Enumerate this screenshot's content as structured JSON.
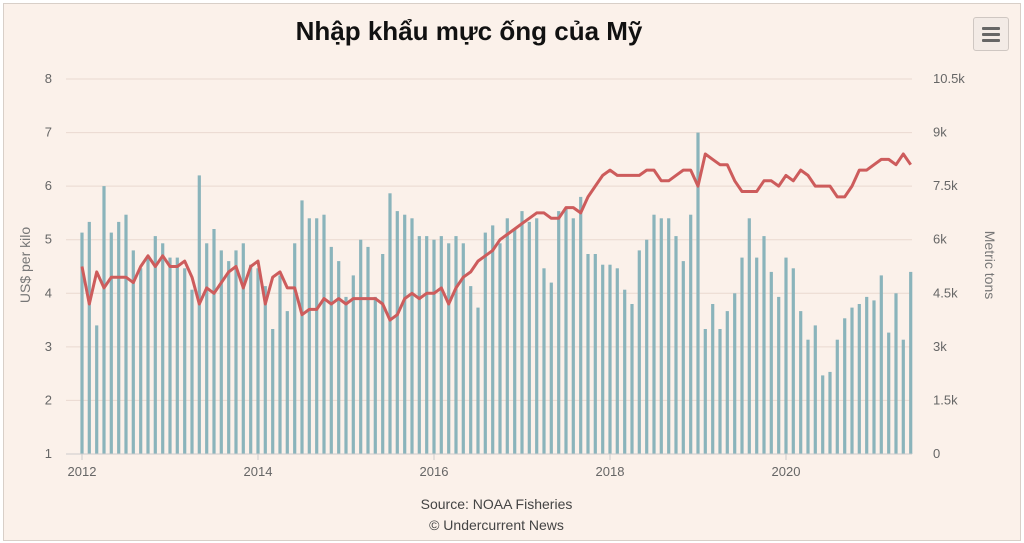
{
  "title": "Nhập khẩu mực ống của Mỹ",
  "menu_icon": "hamburger-menu-icon",
  "source_line": "Source: NOAA Fisheries",
  "credit_line": "© Undercurrent News",
  "chart_data": {
    "type": "bar+line",
    "title": "Nhập khẩu mực ống của Mỹ",
    "xlabel": "",
    "x_ticks": [
      "2012",
      "2014",
      "2016",
      "2018",
      "2020"
    ],
    "left_axis": {
      "label": "US$ per kilo",
      "ticks": [
        "1",
        "2",
        "3",
        "4",
        "5",
        "6",
        "7",
        "8"
      ],
      "range": [
        1,
        8
      ]
    },
    "right_axis": {
      "label": "Metric tons",
      "ticks": [
        "0",
        "1.5k",
        "3k",
        "4.5k",
        "6k",
        "7.5k",
        "9k",
        "10.5k"
      ],
      "range": [
        0,
        10500
      ]
    },
    "grid": true,
    "bar_color": "#8ab4bb",
    "line_color": "#cd5c5c",
    "start_year": 2012,
    "series": [
      {
        "axis": "right",
        "kind": "bar",
        "values": [
          6200,
          6500,
          3600,
          7500,
          6200,
          6500,
          6700,
          5700,
          5200,
          5500,
          6100,
          5900,
          5500,
          5500,
          5200,
          4600,
          7800,
          5900,
          6300,
          5700,
          5400,
          5700,
          5900,
          5300,
          5200,
          4700,
          3500,
          5000,
          4000,
          5900,
          7100,
          6600,
          6600,
          6700,
          5800,
          5400,
          4400,
          5000,
          6000,
          5800,
          4400,
          5600,
          7300,
          6800,
          6700,
          6600,
          6100,
          6100,
          6000,
          6100,
          5900,
          6100,
          5900,
          4700,
          4100,
          6200,
          6400,
          5900,
          6600,
          6300,
          6800,
          6500,
          6600,
          5200,
          4800,
          6800,
          6900,
          6600,
          7200,
          5600,
          5600,
          5300,
          5300,
          5200,
          4600,
          4200,
          5700,
          6000,
          6700,
          6600,
          6600,
          6100,
          5400,
          6700,
          9000,
          3500,
          4200,
          3500,
          4000,
          4500,
          5500,
          6600,
          5500,
          6100,
          5100,
          4400,
          5500,
          5200,
          4000,
          3200,
          3600,
          2200,
          2300,
          3200,
          3800,
          4100,
          4200,
          4400,
          4300,
          5000,
          3400,
          4500,
          3200,
          5100
        ]
      },
      {
        "axis": "left",
        "kind": "line",
        "values": [
          4.5,
          3.8,
          4.4,
          4.1,
          4.3,
          4.3,
          4.3,
          4.2,
          4.5,
          4.7,
          4.5,
          4.7,
          4.5,
          4.5,
          4.6,
          4.3,
          3.8,
          4.1,
          4.0,
          4.2,
          4.4,
          4.5,
          4.1,
          4.5,
          4.6,
          3.8,
          4.3,
          4.4,
          4.1,
          4.1,
          3.6,
          3.7,
          3.7,
          3.9,
          3.8,
          3.9,
          3.8,
          3.9,
          3.9,
          3.9,
          3.9,
          3.8,
          3.5,
          3.6,
          3.9,
          4.0,
          3.9,
          4.0,
          4.0,
          4.1,
          3.8,
          4.1,
          4.3,
          4.4,
          4.6,
          4.7,
          4.8,
          5.0,
          5.1,
          5.2,
          5.3,
          5.4,
          5.5,
          5.5,
          5.4,
          5.4,
          5.6,
          5.6,
          5.5,
          5.8,
          6.0,
          6.2,
          6.3,
          6.2,
          6.2,
          6.2,
          6.2,
          6.3,
          6.3,
          6.1,
          6.1,
          6.2,
          6.3,
          6.3,
          6.0,
          6.6,
          6.5,
          6.4,
          6.4,
          6.1,
          5.9,
          5.9,
          5.9,
          6.1,
          6.1,
          6.0,
          6.2,
          6.1,
          6.3,
          6.2,
          6.0,
          6.0,
          6.0,
          5.8,
          5.8,
          6.0,
          6.3,
          6.3,
          6.4,
          6.5,
          6.5,
          6.4,
          6.6,
          6.4
        ]
      }
    ]
  }
}
